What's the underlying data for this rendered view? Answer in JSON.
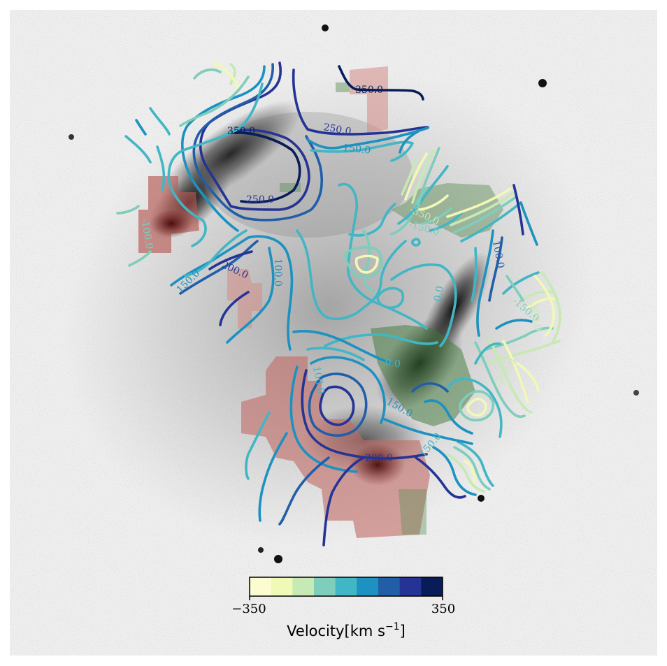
{
  "chart_data": {
    "type": "contour",
    "background": "grayscale galaxy image (interacting galaxy pair) with red and green residual maps",
    "contour_levels": [
      -350,
      -250,
      -150,
      -100,
      0,
      100,
      150,
      200,
      250,
      350
    ],
    "contour_labels": [
      {
        "text": "350.0",
        "value": 350
      },
      {
        "text": "250.0",
        "value": 250
      },
      {
        "text": "150.0",
        "value": 150
      },
      {
        "text": "350.0",
        "value": 350
      },
      {
        "text": "250.0",
        "value": 250
      },
      {
        "text": "200.0",
        "value": 200
      },
      {
        "text": "150.0",
        "value": 150
      },
      {
        "text": "100.0",
        "value": 100
      },
      {
        "text": "-100.0",
        "value": -100
      },
      {
        "text": "-350.0",
        "value": -350
      },
      {
        "text": "-150.0",
        "value": -150
      },
      {
        "text": "100.0",
        "value": 100
      },
      {
        "text": "0.0",
        "value": 0
      },
      {
        "text": "-150.0",
        "value": -150
      },
      {
        "text": "-350.0",
        "value": -350
      },
      {
        "text": "-250.0",
        "value": -250
      },
      {
        "text": "0.0",
        "value": 0
      },
      {
        "text": "150.0",
        "value": 150
      },
      {
        "text": "200.0",
        "value": 200
      },
      {
        "text": "100.0",
        "value": 100
      },
      {
        "text": "150.0",
        "value": 150
      }
    ],
    "colorbar": {
      "label_text": "Velocity[km s",
      "label_sup": "−1",
      "label_close": "]",
      "min_label": "−350",
      "max_label": "350",
      "min": -350,
      "max": 350,
      "colors": [
        "#fbfdd0",
        "#f0f9b5",
        "#c7e9b4",
        "#7fcdbb",
        "#41b6c4",
        "#1d91c0",
        "#225ea8",
        "#253494",
        "#081d58"
      ]
    }
  }
}
